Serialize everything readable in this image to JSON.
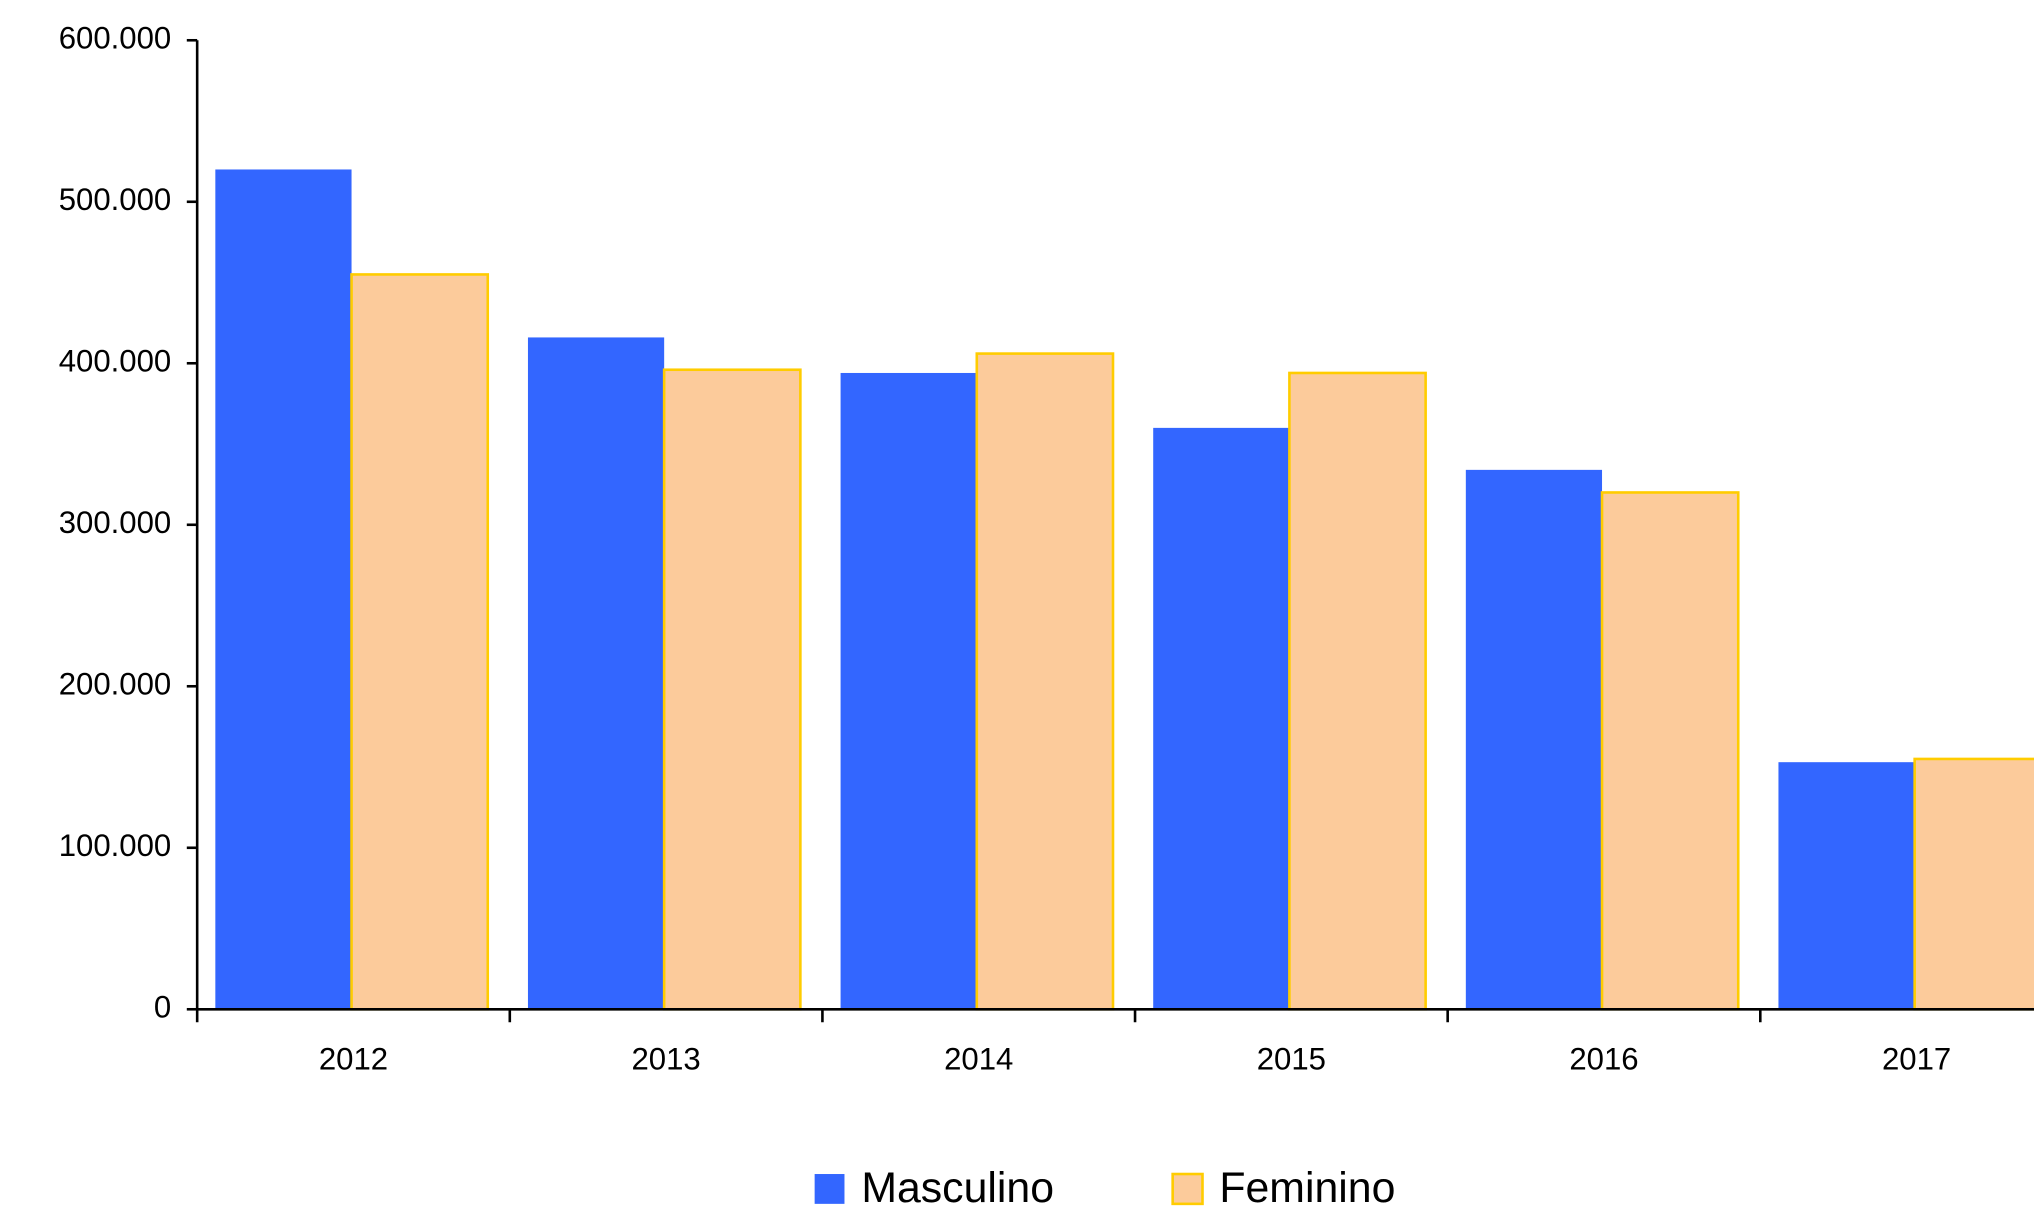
{
  "chart_data": {
    "type": "bar",
    "categories": [
      "2012",
      "2013",
      "2014",
      "2015",
      "2016",
      "2017"
    ],
    "series": [
      {
        "name": "Masculino",
        "color": "#3366ff",
        "values": [
          520000,
          416000,
          394000,
          360000,
          334000,
          153000
        ]
      },
      {
        "name": "Feminino",
        "color": "#fccb9b",
        "values": [
          455000,
          396000,
          406000,
          394000,
          320000,
          155000
        ]
      }
    ],
    "ylim": [
      0,
      600000
    ],
    "yticks": [
      0,
      {
        "value": 100000,
        "label": "100.000"
      },
      {
        "value": 200000,
        "label": "200.000"
      },
      {
        "value": 300000,
        "label": "300.000"
      },
      {
        "value": 400000,
        "label": "400.000"
      },
      {
        "value": 500000,
        "label": "500.000"
      },
      {
        "value": 600000,
        "label": "600.000"
      }
    ],
    "grid": false
  }
}
